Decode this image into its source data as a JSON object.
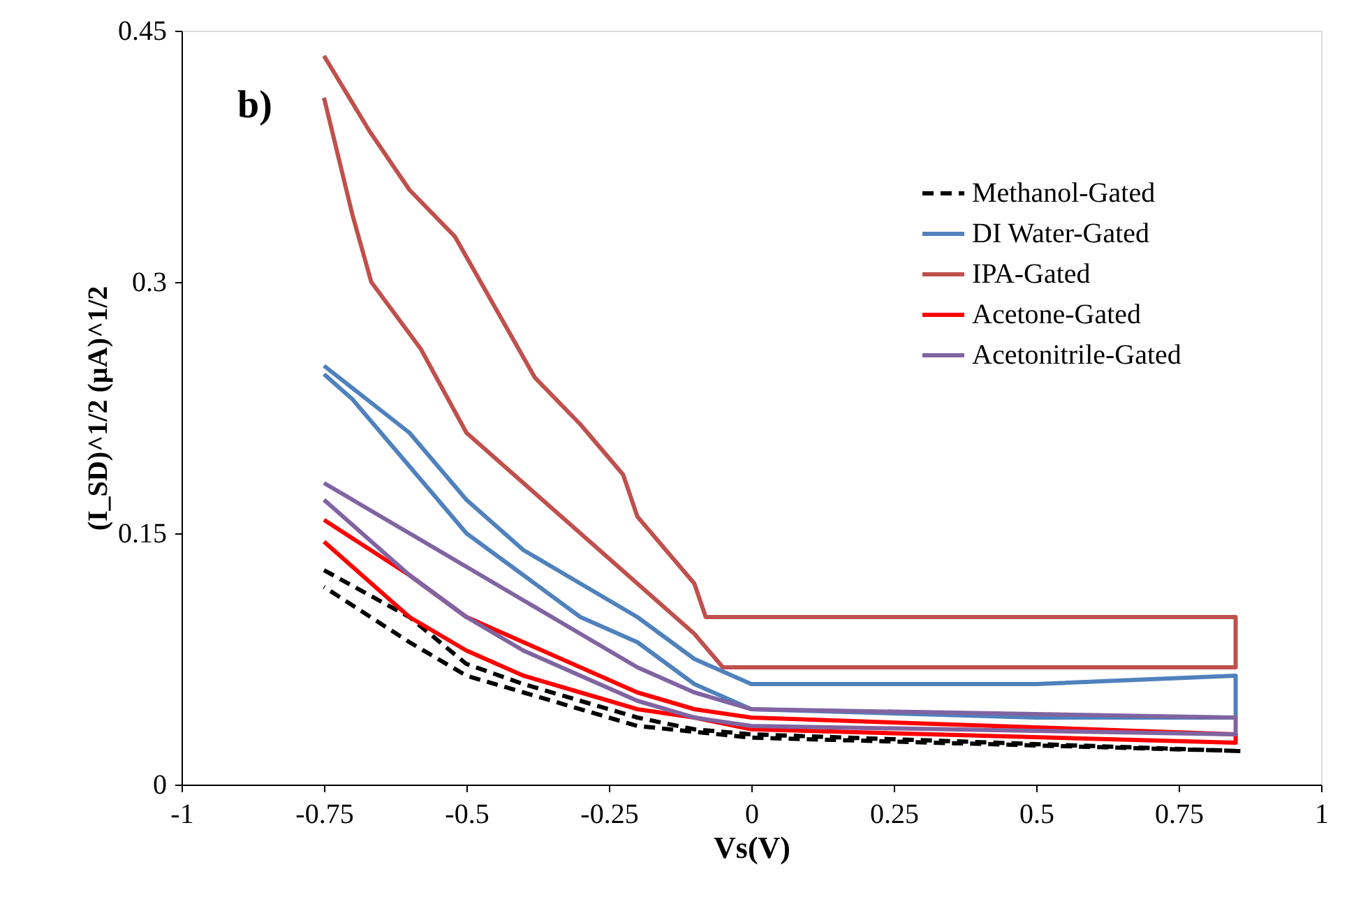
{
  "chart_data": {
    "type": "line",
    "xlabel": "Vs(V)",
    "ylabel": "(I_SD)^1/2 (µA)^1/2",
    "annotations": [
      "b)"
    ],
    "xlim": [
      -1,
      1
    ],
    "xticks": [
      -1,
      -0.75,
      -0.5,
      -0.25,
      0,
      0.25,
      0.5,
      0.75,
      1
    ],
    "ylim": [
      0,
      0.45
    ],
    "yticks": [
      0,
      0.15,
      0.3,
      0.45
    ],
    "grid": false,
    "legend": "top right",
    "marker": "none",
    "series": [
      {
        "name": "Methanol-Gated",
        "color": "#000000",
        "line_style": "dashed",
        "x": [
          -0.75,
          -0.6,
          -0.5,
          -0.4,
          -0.3,
          -0.2,
          -0.1,
          0,
          0.86,
          0.86,
          0,
          -0.2,
          -0.4,
          -0.5,
          -0.6,
          -0.75
        ],
        "values": [
          0.128,
          0.1,
          0.072,
          0.06,
          0.05,
          0.04,
          0.033,
          0.03,
          0.02,
          0.02,
          0.028,
          0.035,
          0.055,
          0.065,
          0.085,
          0.118
        ]
      },
      {
        "name": "DI Water-Gated",
        "color": "#4f81bd",
        "line_style": "solid",
        "x": [
          -0.75,
          -0.6,
          -0.5,
          -0.4,
          -0.3,
          -0.2,
          -0.1,
          0,
          0.5,
          0.85,
          0.85,
          0.5,
          0,
          -0.1,
          -0.2,
          -0.3,
          -0.4,
          -0.5,
          -0.6,
          -0.7,
          -0.75
        ],
        "values": [
          0.25,
          0.21,
          0.17,
          0.14,
          0.12,
          0.1,
          0.075,
          0.06,
          0.06,
          0.065,
          0.04,
          0.04,
          0.045,
          0.06,
          0.085,
          0.1,
          0.125,
          0.15,
          0.19,
          0.23,
          0.245
        ]
      },
      {
        "name": "IPA-Gated",
        "color": "#c0504d",
        "line_style": "solid",
        "x": [
          -0.75,
          -0.67,
          -0.6,
          -0.52,
          -0.45,
          -0.38,
          -0.3,
          -0.225,
          -0.2,
          -0.1,
          -0.08,
          0.72,
          0.85,
          0.85,
          0.5,
          0,
          -0.05,
          -0.1,
          -0.2,
          -0.3,
          -0.4,
          -0.5,
          -0.58,
          -0.667,
          -0.7,
          -0.75
        ],
        "values": [
          0.435,
          0.39,
          0.355,
          0.327,
          0.285,
          0.243,
          0.215,
          0.185,
          0.16,
          0.12,
          0.1,
          0.1,
          0.1,
          0.07,
          0.07,
          0.07,
          0.07,
          0.09,
          0.12,
          0.15,
          0.18,
          0.21,
          0.26,
          0.3,
          0.34,
          0.41
        ]
      },
      {
        "name": "Acetone-Gated",
        "color": "#ff0000",
        "line_style": "solid",
        "x": [
          -0.75,
          -0.6,
          -0.5,
          -0.4,
          -0.3,
          -0.2,
          -0.1,
          0,
          0.85,
          0.85,
          0,
          -0.1,
          -0.2,
          -0.3,
          -0.4,
          -0.5,
          -0.6,
          -0.75
        ],
        "values": [
          0.158,
          0.125,
          0.1,
          0.085,
          0.07,
          0.055,
          0.045,
          0.04,
          0.03,
          0.025,
          0.033,
          0.04,
          0.045,
          0.055,
          0.065,
          0.08,
          0.1,
          0.145
        ]
      },
      {
        "name": "Acetonitrile-Gated",
        "color": "#8064a2",
        "line_style": "solid",
        "x": [
          -0.75,
          -0.6,
          -0.5,
          -0.4,
          -0.3,
          -0.2,
          -0.1,
          0,
          0.85,
          0.85,
          0,
          -0.1,
          -0.2,
          -0.3,
          -0.4,
          -0.5,
          -0.6,
          -0.75
        ],
        "values": [
          0.18,
          0.15,
          0.13,
          0.11,
          0.09,
          0.07,
          0.055,
          0.045,
          0.04,
          0.03,
          0.035,
          0.04,
          0.05,
          0.065,
          0.08,
          0.1,
          0.125,
          0.17
        ]
      }
    ]
  }
}
